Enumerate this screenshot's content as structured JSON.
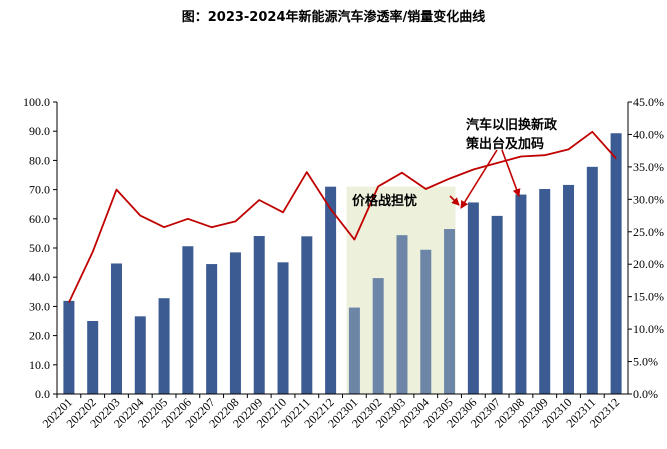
{
  "chart_data": {
    "type": "bar+line",
    "title": "图：2023-2024年新能源汽车渗透率/销量变化曲线",
    "categories": [
      "202201",
      "202202",
      "202203",
      "202204",
      "202205",
      "202206",
      "202207",
      "202208",
      "202209",
      "202210",
      "202211",
      "202212",
      "202301",
      "202302",
      "202303",
      "202304",
      "202305",
      "202306",
      "202307",
      "202308",
      "202309",
      "202310",
      "202311",
      "202312"
    ],
    "series": [
      {
        "name": "",
        "type": "bar",
        "axis": "left",
        "color": "#3B5B92",
        "values": [
          31.9,
          25.0,
          44.7,
          26.6,
          32.8,
          50.6,
          44.5,
          48.5,
          54.1,
          45.1,
          54.0,
          71.0,
          29.6,
          39.7,
          54.4,
          49.4,
          56.5,
          65.6,
          61.0,
          68.3,
          70.2,
          71.6,
          77.8,
          89.3
        ]
      },
      {
        "name": "",
        "type": "line",
        "axis": "right",
        "color": "#C00000",
        "values": [
          14.1,
          21.9,
          31.5,
          27.5,
          25.7,
          27.0,
          25.7,
          26.6,
          29.9,
          28.0,
          34.2,
          28.5,
          23.8,
          32.0,
          34.1,
          31.6,
          33.2,
          34.6,
          35.6,
          36.6,
          36.8,
          37.7,
          40.4,
          36.3
        ]
      }
    ],
    "y_left": {
      "ylim": [
        0,
        100
      ],
      "ticks": [
        "0.0",
        "10.0",
        "20.0",
        "30.0",
        "40.0",
        "50.0",
        "60.0",
        "70.0",
        "80.0",
        "90.0",
        "100.0"
      ]
    },
    "y_right": {
      "ylim": [
        0,
        45
      ],
      "ticks": [
        "0.0%",
        "5.0%",
        "10.0%",
        "15.0%",
        "20.0%",
        "25.0%",
        "30.0%",
        "35.0%",
        "40.0%",
        "45.0%"
      ]
    },
    "highlight": {
      "from": "202301",
      "to": "202305",
      "color": "#EDF1DC",
      "label": "价格战担忧"
    },
    "annotation": {
      "lines": [
        "汽车以旧换新政",
        "策出台及加码"
      ],
      "targets": [
        "202306",
        "202308"
      ]
    },
    "grid": false,
    "legend": "none"
  }
}
